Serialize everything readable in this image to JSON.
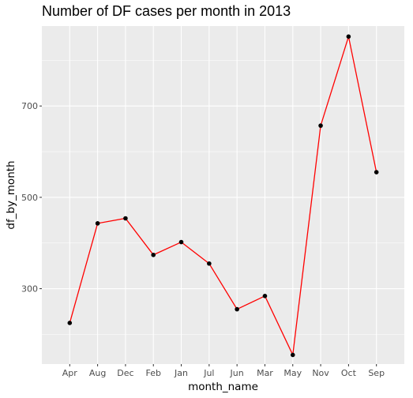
{
  "chart_data": {
    "type": "line",
    "title": "Number of DF cases per month in 2013",
    "xlabel": "month_name",
    "ylabel": "df_by_month",
    "categories": [
      "Apr",
      "Aug",
      "Dec",
      "Feb",
      "Jan",
      "Jul",
      "Jun",
      "Mar",
      "May",
      "Nov",
      "Oct",
      "Sep"
    ],
    "values": [
      225,
      443,
      454,
      374,
      402,
      355,
      255,
      284,
      155,
      657,
      852,
      555
    ],
    "yticks": [
      300,
      500,
      700
    ],
    "ylim": [
      135,
      875
    ],
    "grid": true,
    "line_color": "#ff0000",
    "point_color": "#000000",
    "panel_background": "#ebebeb",
    "grid_color": "#ffffff"
  }
}
